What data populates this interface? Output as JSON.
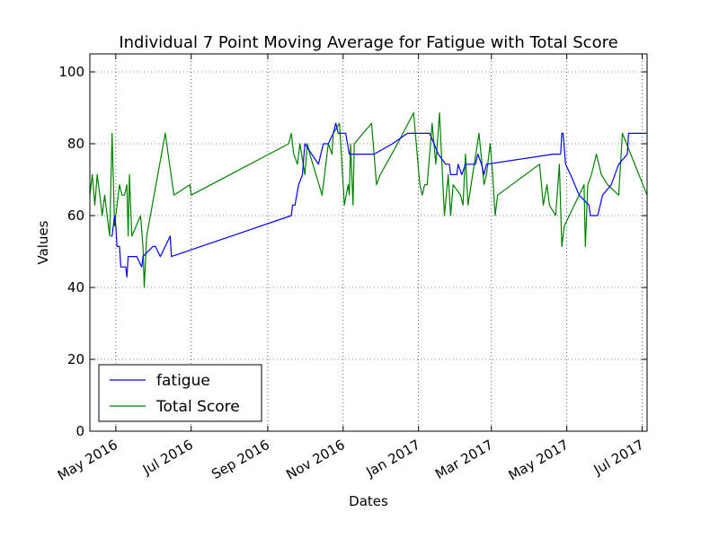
{
  "chart_data": {
    "type": "line",
    "title": "Individual 7 Point Moving Average for Fatigue with Total Score",
    "xlabel": "Dates",
    "ylabel": "Values",
    "xlim": [
      "2016-04-10",
      "2017-07-05"
    ],
    "ylim": [
      0,
      105
    ],
    "grid": true,
    "legend_position": "lower-left",
    "x_ticks": [
      {
        "date": "2016-05-01",
        "label": "May 2016"
      },
      {
        "date": "2016-07-01",
        "label": "Jul 2016"
      },
      {
        "date": "2016-09-01",
        "label": "Sep 2016"
      },
      {
        "date": "2016-11-01",
        "label": "Nov 2016"
      },
      {
        "date": "2017-01-01",
        "label": "Jan 2017"
      },
      {
        "date": "2017-03-01",
        "label": "Mar 2017"
      },
      {
        "date": "2017-05-01",
        "label": "May 2017"
      },
      {
        "date": "2017-07-01",
        "label": "Jul 2017"
      }
    ],
    "y_ticks": [
      0,
      20,
      40,
      60,
      80,
      100
    ],
    "series": [
      {
        "name": "fatigue",
        "color": "#0000ff",
        "points": [
          [
            "2016-04-27",
            54.3
          ],
          [
            "2016-04-28",
            54.3
          ],
          [
            "2016-04-30",
            60
          ],
          [
            "2016-05-01",
            57
          ],
          [
            "2016-05-02",
            51.4
          ],
          [
            "2016-05-04",
            51.4
          ],
          [
            "2016-05-05",
            45.7
          ],
          [
            "2016-05-07",
            45.7
          ],
          [
            "2016-05-09",
            45.7
          ],
          [
            "2016-05-10",
            42.9
          ],
          [
            "2016-05-11",
            48.6
          ],
          [
            "2016-05-18",
            48.6
          ],
          [
            "2016-05-22",
            45.7
          ],
          [
            "2016-05-23",
            48.6
          ],
          [
            "2016-05-31",
            51.4
          ],
          [
            "2016-06-02",
            51.4
          ],
          [
            "2016-06-06",
            48.6
          ],
          [
            "2016-06-14",
            54.3
          ],
          [
            "2016-06-15",
            48.6
          ],
          [
            "2016-09-20",
            60
          ],
          [
            "2016-09-21",
            62.9
          ],
          [
            "2016-09-23",
            62.9
          ],
          [
            "2016-09-26",
            68.6
          ],
          [
            "2016-09-29",
            71.4
          ],
          [
            "2016-10-01",
            80
          ],
          [
            "2016-10-12",
            74.3
          ],
          [
            "2016-10-16",
            80
          ],
          [
            "2016-10-20",
            80
          ],
          [
            "2016-10-24",
            82.9
          ],
          [
            "2016-10-26",
            85.7
          ],
          [
            "2016-10-28",
            82.9
          ],
          [
            "2016-11-03",
            82.9
          ],
          [
            "2016-11-06",
            77.1
          ],
          [
            "2016-11-26",
            77.1
          ],
          [
            "2016-12-11",
            80
          ],
          [
            "2016-12-23",
            82.9
          ],
          [
            "2017-01-01",
            82.9
          ],
          [
            "2017-01-10",
            82.9
          ],
          [
            "2017-01-17",
            77.1
          ],
          [
            "2017-01-23",
            74.3
          ],
          [
            "2017-01-26",
            74.3
          ],
          [
            "2017-01-27",
            71.4
          ],
          [
            "2017-02-01",
            71.4
          ],
          [
            "2017-02-02",
            74.3
          ],
          [
            "2017-02-05",
            71.4
          ],
          [
            "2017-02-08",
            74.3
          ],
          [
            "2017-02-16",
            74.3
          ],
          [
            "2017-02-18",
            77.1
          ],
          [
            "2017-02-21",
            74.3
          ],
          [
            "2017-02-23",
            71.4
          ],
          [
            "2017-02-25",
            74.3
          ],
          [
            "2017-04-20",
            77.1
          ],
          [
            "2017-04-26",
            77.1
          ],
          [
            "2017-04-27",
            82.9
          ],
          [
            "2017-04-28",
            82.9
          ],
          [
            "2017-04-30",
            74.3
          ],
          [
            "2017-05-04",
            71.4
          ],
          [
            "2017-05-11",
            65.7
          ],
          [
            "2017-05-19",
            62.9
          ],
          [
            "2017-05-20",
            60
          ],
          [
            "2017-05-26",
            60
          ],
          [
            "2017-05-30",
            65.7
          ],
          [
            "2017-06-06",
            68.6
          ],
          [
            "2017-06-12",
            74.3
          ],
          [
            "2017-06-19",
            77.1
          ],
          [
            "2017-06-20",
            82.9
          ],
          [
            "2017-07-05",
            82.9
          ]
        ]
      },
      {
        "name": "Total Score",
        "color": "#008000",
        "points": [
          [
            "2016-04-10",
            65.7
          ],
          [
            "2016-04-12",
            71.4
          ],
          [
            "2016-04-14",
            62.9
          ],
          [
            "2016-04-16",
            71.4
          ],
          [
            "2016-04-18",
            65.7
          ],
          [
            "2016-04-20",
            60
          ],
          [
            "2016-04-22",
            65.7
          ],
          [
            "2016-04-24",
            60
          ],
          [
            "2016-04-26",
            54.3
          ],
          [
            "2016-04-28",
            82.9
          ],
          [
            "2016-04-30",
            57.1
          ],
          [
            "2016-05-02",
            62.9
          ],
          [
            "2016-05-04",
            68.6
          ],
          [
            "2016-05-06",
            65.7
          ],
          [
            "2016-05-08",
            65.7
          ],
          [
            "2016-05-10",
            68.6
          ],
          [
            "2016-05-11",
            54.3
          ],
          [
            "2016-05-12",
            71.4
          ],
          [
            "2016-05-14",
            54.3
          ],
          [
            "2016-05-21",
            60
          ],
          [
            "2016-05-23",
            51.4
          ],
          [
            "2016-05-24",
            40
          ],
          [
            "2016-05-26",
            54.3
          ],
          [
            "2016-06-10",
            82.9
          ],
          [
            "2016-06-17",
            65.7
          ],
          [
            "2016-06-30",
            68.6
          ],
          [
            "2016-07-01",
            65.7
          ],
          [
            "2016-09-18",
            80
          ],
          [
            "2016-09-20",
            82.9
          ],
          [
            "2016-09-22",
            77.1
          ],
          [
            "2016-09-25",
            74.3
          ],
          [
            "2016-09-27",
            80
          ],
          [
            "2016-10-01",
            71.4
          ],
          [
            "2016-10-03",
            80
          ],
          [
            "2016-10-05",
            77.1
          ],
          [
            "2016-10-15",
            65.7
          ],
          [
            "2016-10-20",
            80
          ],
          [
            "2016-10-23",
            77.1
          ],
          [
            "2016-10-24",
            82.9
          ],
          [
            "2016-10-29",
            85.7
          ],
          [
            "2016-11-02",
            62.9
          ],
          [
            "2016-11-05",
            68.6
          ],
          [
            "2016-11-06",
            65.7
          ],
          [
            "2016-11-07",
            80
          ],
          [
            "2016-11-09",
            62.9
          ],
          [
            "2016-11-10",
            80
          ],
          [
            "2016-11-24",
            85.7
          ],
          [
            "2016-11-26",
            77.1
          ],
          [
            "2016-11-28",
            68.6
          ],
          [
            "2016-12-01",
            71.4
          ],
          [
            "2016-12-15",
            80
          ],
          [
            "2016-12-28",
            88.6
          ],
          [
            "2017-01-02",
            68.6
          ],
          [
            "2017-01-04",
            65.7
          ],
          [
            "2017-01-06",
            68.6
          ],
          [
            "2017-01-08",
            68.6
          ],
          [
            "2017-01-12",
            85.7
          ],
          [
            "2017-01-15",
            74.3
          ],
          [
            "2017-01-18",
            88.6
          ],
          [
            "2017-01-22",
            60
          ],
          [
            "2017-01-25",
            71.4
          ],
          [
            "2017-01-27",
            60
          ],
          [
            "2017-01-29",
            68.6
          ],
          [
            "2017-02-04",
            65.7
          ],
          [
            "2017-02-06",
            62.9
          ],
          [
            "2017-02-08",
            77.1
          ],
          [
            "2017-02-10",
            62.9
          ],
          [
            "2017-02-19",
            82.9
          ],
          [
            "2017-02-23",
            68.6
          ],
          [
            "2017-02-25",
            71.4
          ],
          [
            "2017-02-28",
            80
          ],
          [
            "2017-03-02",
            71.4
          ],
          [
            "2017-03-04",
            60
          ],
          [
            "2017-03-06",
            65.7
          ],
          [
            "2017-04-09",
            74.3
          ],
          [
            "2017-04-12",
            62.9
          ],
          [
            "2017-04-15",
            68.6
          ],
          [
            "2017-04-17",
            62.9
          ],
          [
            "2017-04-22",
            60
          ],
          [
            "2017-04-25",
            74.3
          ],
          [
            "2017-04-27",
            51.4
          ],
          [
            "2017-04-29",
            57.1
          ],
          [
            "2017-05-15",
            68.6
          ],
          [
            "2017-05-16",
            51.4
          ],
          [
            "2017-05-18",
            68.6
          ],
          [
            "2017-05-21",
            71.4
          ],
          [
            "2017-05-25",
            77.1
          ],
          [
            "2017-05-29",
            71.4
          ],
          [
            "2017-06-03",
            68.6
          ],
          [
            "2017-06-12",
            65.7
          ],
          [
            "2017-06-15",
            82.9
          ],
          [
            "2017-07-05",
            65.7
          ]
        ]
      }
    ],
    "legend": [
      {
        "label": "fatigue",
        "color": "#0000ff"
      },
      {
        "label": "Total Score",
        "color": "#008000"
      }
    ]
  }
}
